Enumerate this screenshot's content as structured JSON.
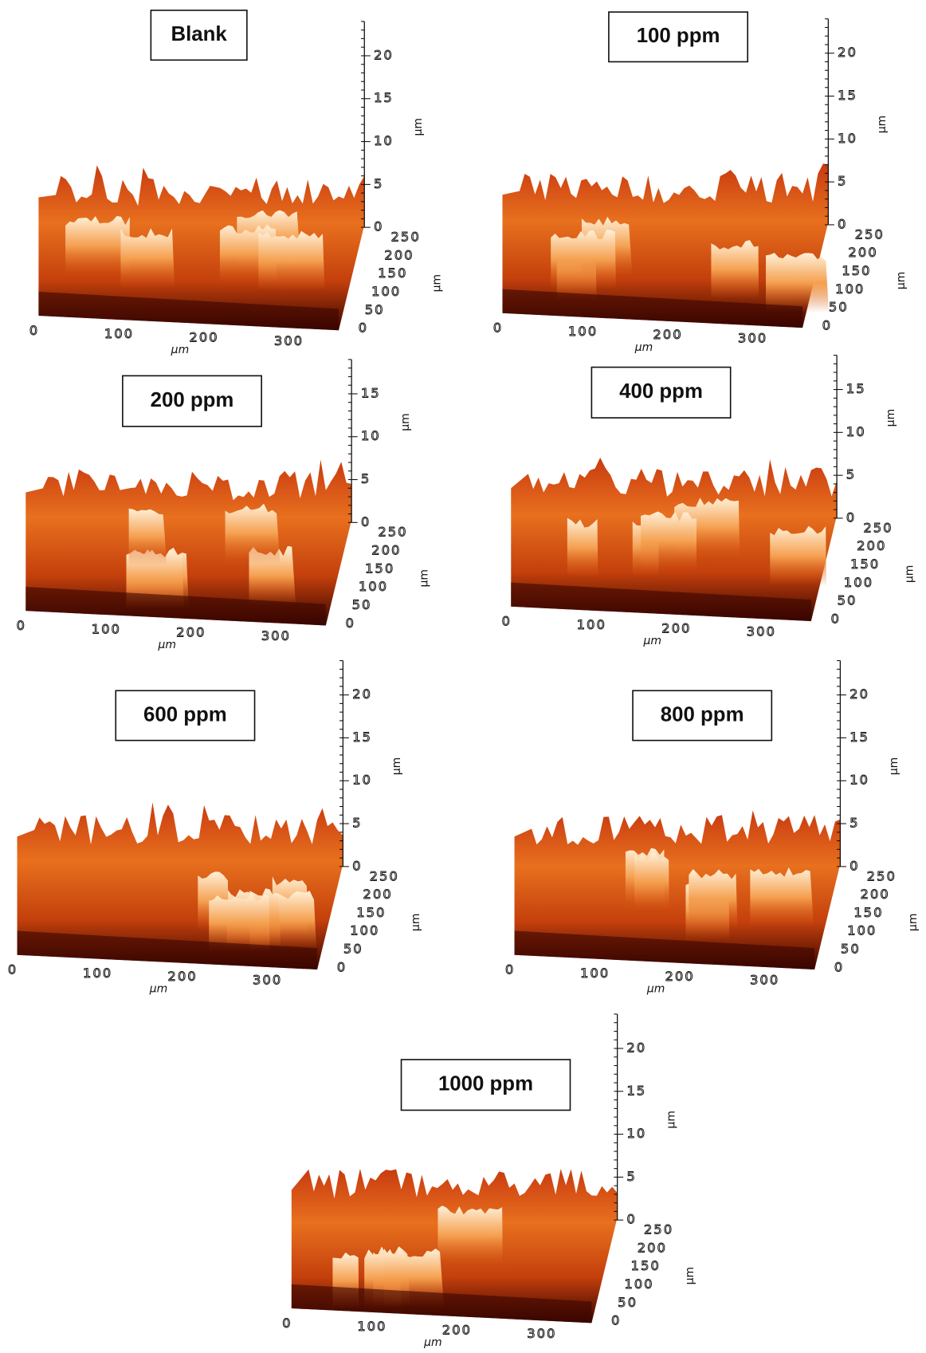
{
  "panels": [
    {
      "label": "Blank",
      "z_ticks": [
        20,
        15,
        10,
        5,
        0
      ],
      "z_unit": "µm",
      "y_ticks": [
        250,
        200,
        150,
        100,
        50,
        0
      ],
      "y_unit": "µm",
      "x_ticks": [
        0,
        100,
        200,
        300
      ],
      "x_unit": "µm"
    },
    {
      "label": "100 ppm",
      "z_ticks": [
        20,
        15,
        10,
        5,
        0
      ],
      "z_unit": "µm",
      "y_ticks": [
        250,
        200,
        150,
        100,
        50,
        0
      ],
      "y_unit": "µm",
      "x_ticks": [
        0,
        100,
        200,
        300
      ],
      "x_unit": "µm"
    },
    {
      "label": "200 ppm",
      "z_ticks": [
        15,
        10,
        5,
        0
      ],
      "z_unit": "µm",
      "y_ticks": [
        250,
        200,
        150,
        100,
        50,
        0
      ],
      "y_unit": "µm",
      "x_ticks": [
        0,
        100,
        200,
        300
      ],
      "x_unit": "µm"
    },
    {
      "label": "400 ppm",
      "z_ticks": [
        15,
        10,
        5,
        0
      ],
      "z_unit": "µm",
      "y_ticks": [
        250,
        200,
        150,
        100,
        50,
        0
      ],
      "y_unit": "µm",
      "x_ticks": [
        0,
        100,
        200,
        300
      ],
      "x_unit": "µm"
    },
    {
      "label": "600 ppm",
      "z_ticks": [
        20,
        15,
        10,
        5,
        0
      ],
      "z_unit": "µm",
      "y_ticks": [
        250,
        200,
        150,
        100,
        50,
        0
      ],
      "y_unit": "µm",
      "x_ticks": [
        0,
        100,
        200,
        300
      ],
      "x_unit": "µm"
    },
    {
      "label": "800 ppm",
      "z_ticks": [
        20,
        15,
        10,
        5,
        0
      ],
      "z_unit": "µm",
      "y_ticks": [
        250,
        200,
        150,
        100,
        50,
        0
      ],
      "y_unit": "µm",
      "x_ticks": [
        0,
        100,
        200,
        300
      ],
      "x_unit": "µm"
    },
    {
      "label": "1000 ppm",
      "z_ticks": [
        20,
        15,
        10,
        5,
        0
      ],
      "z_unit": "µm",
      "y_ticks": [
        250,
        200,
        150,
        100,
        50,
        0
      ],
      "y_unit": "µm",
      "x_ticks": [
        0,
        100,
        200,
        300
      ],
      "x_unit": "µm"
    }
  ]
}
